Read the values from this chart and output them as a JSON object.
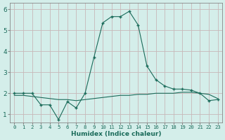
{
  "xlabel": "Humidex (Indice chaleur)",
  "bg_color": "#d4eeea",
  "grid_color": "#c8b8b8",
  "line_color": "#1a6b5a",
  "xlim": [
    -0.5,
    23.5
  ],
  "ylim": [
    0.6,
    6.3
  ],
  "yticks": [
    1,
    2,
    3,
    4,
    5,
    6
  ],
  "xtick_labels": [
    "0",
    "1",
    "2",
    "3",
    "4",
    "5",
    "6",
    "7",
    "8",
    "9",
    "10",
    "11",
    "12",
    "13",
    "14",
    "15",
    "16",
    "17",
    "18",
    "19",
    "20",
    "21",
    "22",
    "23"
  ],
  "xtick_positions": [
    0,
    1,
    2,
    3,
    4,
    5,
    6,
    7,
    8,
    9,
    10,
    11,
    12,
    13,
    14,
    15,
    16,
    17,
    18,
    19,
    20,
    21,
    22,
    23
  ],
  "series1_x": [
    0,
    1,
    2,
    3,
    4,
    5,
    6,
    7,
    8,
    9,
    10,
    11,
    12,
    13,
    14,
    15,
    16,
    17,
    18,
    19,
    20,
    21,
    22,
    23
  ],
  "series1_y": [
    2.0,
    2.0,
    2.0,
    1.45,
    1.45,
    0.75,
    1.6,
    1.3,
    2.0,
    3.7,
    5.35,
    5.65,
    5.65,
    5.9,
    5.25,
    3.3,
    2.65,
    2.35,
    2.2,
    2.2,
    2.15,
    2.0,
    1.65,
    1.7
  ],
  "series2_x": [
    0,
    1,
    2,
    3,
    4,
    5,
    6,
    7,
    8,
    9,
    10,
    11,
    12,
    13,
    14,
    15,
    16,
    17,
    18,
    19,
    20,
    21,
    22,
    23
  ],
  "series2_y": [
    1.9,
    1.9,
    1.85,
    1.8,
    1.75,
    1.7,
    1.7,
    1.65,
    1.7,
    1.75,
    1.8,
    1.85,
    1.9,
    1.9,
    1.95,
    1.95,
    2.0,
    2.0,
    2.0,
    2.05,
    2.05,
    2.0,
    1.95,
    1.75
  ],
  "xlabel_fontsize": 6.5,
  "ytick_fontsize": 6.5,
  "xtick_fontsize": 5.2
}
